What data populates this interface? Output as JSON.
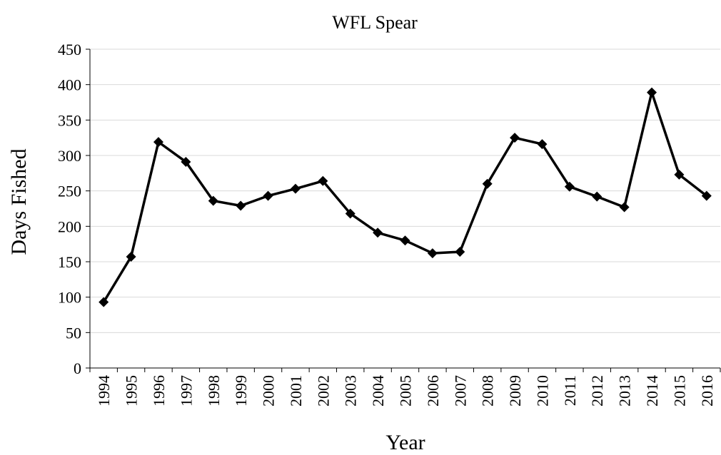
{
  "chart_data": {
    "type": "line",
    "title": "WFL Spear",
    "x_label": "Year",
    "y_label": "Days Fished",
    "categories": [
      "1994",
      "1995",
      "1996",
      "1997",
      "1998",
      "1999",
      "2000",
      "2001",
      "2002",
      "2003",
      "2004",
      "2005",
      "2006",
      "2007",
      "2008",
      "2009",
      "2010",
      "2011",
      "2012",
      "2013",
      "2014",
      "2015",
      "2016"
    ],
    "series": [
      {
        "name": "WFL Spear",
        "color": "#000000",
        "values": [
          93,
          157,
          319,
          291,
          236,
          229,
          243,
          253,
          264,
          218,
          191,
          180,
          162,
          164,
          260,
          325,
          316,
          256,
          242,
          227,
          389,
          273,
          243
        ]
      }
    ],
    "ylim": [
      0,
      450
    ],
    "yticks": [
      0,
      50,
      100,
      150,
      200,
      250,
      300,
      350,
      400,
      450
    ],
    "grid": true
  }
}
